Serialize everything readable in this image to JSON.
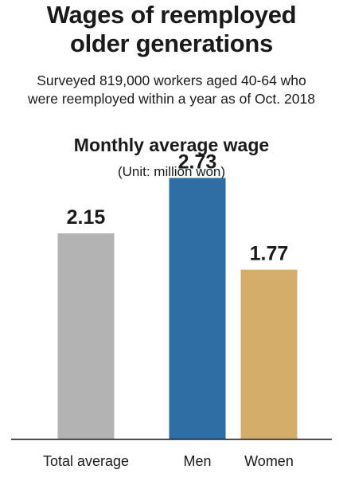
{
  "header": {
    "title_line_1": "Wages of reemployed",
    "title_line_2": "older generations",
    "subtitle_line_1": "Surveyed 819,000 workers aged 40-64 who",
    "subtitle_line_2": "were reemployed within a year as of Oct. 2018"
  },
  "chart_data": {
    "type": "bar",
    "title": "Monthly average wage",
    "unit": "(Unit: million won)",
    "categories": [
      "Total average",
      "Men",
      "Women"
    ],
    "values": [
      2.15,
      2.73,
      1.77
    ],
    "value_labels": [
      "2.15",
      "2.73",
      "1.77"
    ],
    "colors": [
      "#b3b3b3",
      "#2f6ea5",
      "#d5ad6a"
    ],
    "ylim": [
      0,
      3
    ],
    "grid": false,
    "legend": "none"
  }
}
